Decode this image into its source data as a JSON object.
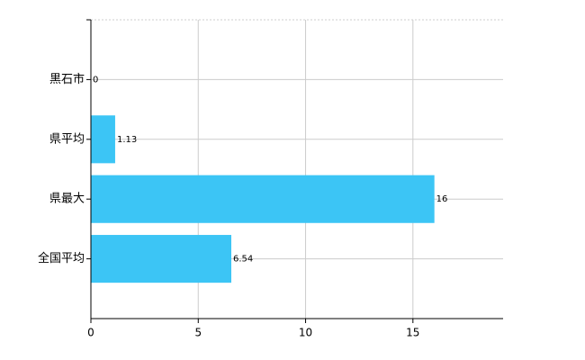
{
  "chart_data": {
    "type": "hbar",
    "categories": [
      "黒石市",
      "県平均",
      "県最大",
      "全国平均"
    ],
    "values": [
      0,
      1.13,
      16,
      6.54
    ],
    "color": "#3cc5f5",
    "xlim": [
      0,
      19.2
    ],
    "xticks": [
      0,
      5,
      10,
      15
    ],
    "grid": true
  }
}
